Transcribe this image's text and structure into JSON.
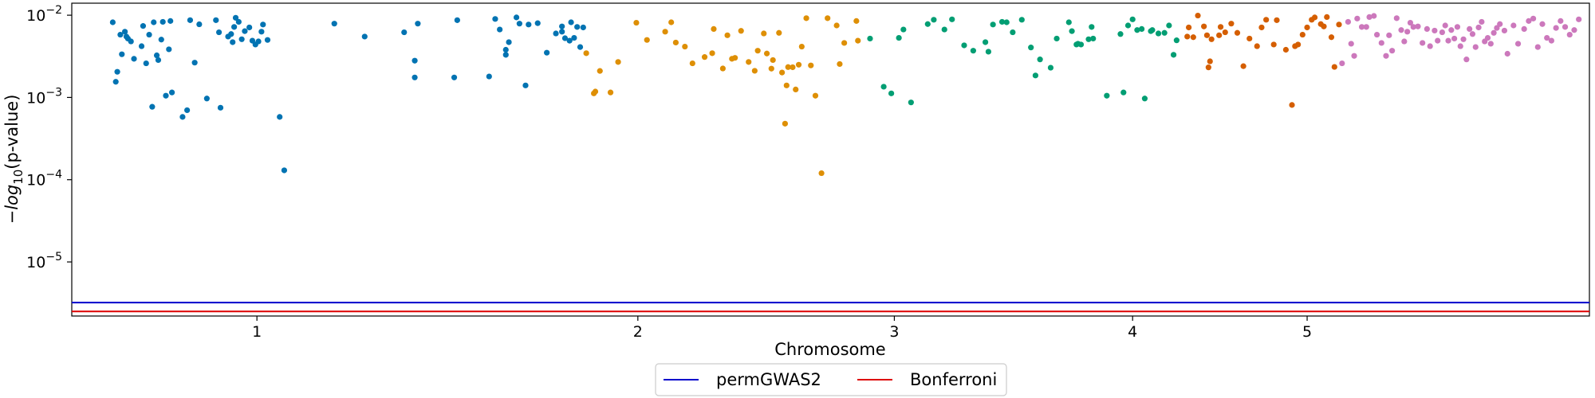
{
  "chart_data": {
    "type": "scatter",
    "title": "",
    "xlabel": "Chromosome",
    "ylabel_prefix": "−log",
    "ylabel_sub": "10",
    "ylabel_suffix": "(p-value)",
    "y_scale": "log-inverted",
    "ylim": [
      0.014,
      2.2e-06
    ],
    "y_ticks": [
      {
        "value": 0.01,
        "base": "10",
        "exp": "−2"
      },
      {
        "value": 0.001,
        "base": "10",
        "exp": "−3"
      },
      {
        "value": 0.0001,
        "base": "10",
        "exp": "−4"
      },
      {
        "value": 1e-05,
        "base": "10",
        "exp": "−5"
      }
    ],
    "xlim": [
      0,
      1000
    ],
    "x_ticks": [
      {
        "value": 122,
        "label": "1"
      },
      {
        "value": 373,
        "label": "2"
      },
      {
        "value": 542,
        "label": "3"
      },
      {
        "value": 699,
        "label": "4"
      },
      {
        "value": 814,
        "label": "5"
      }
    ],
    "thresholds": [
      {
        "name": "permGWAS2",
        "color": "#0000cc",
        "value": 3.2e-06
      },
      {
        "name": "Bonferroni",
        "color": "#dd0000",
        "value": 2.5e-06
      }
    ],
    "legend": {
      "placement": "bottom-center",
      "entries": [
        "permGWAS2",
        "Bonferroni"
      ]
    },
    "series": [
      {
        "color": "#0173b2",
        "points": [
          [
            27,
            0.0082
          ],
          [
            29,
            0.00155
          ],
          [
            30,
            0.00205
          ],
          [
            32,
            0.0058
          ],
          [
            33,
            0.00335
          ],
          [
            35,
            0.0063
          ],
          [
            36,
            0.0055
          ],
          [
            37,
            0.0052
          ],
          [
            39,
            0.0048
          ],
          [
            41,
            0.00295
          ],
          [
            46,
            0.0042
          ],
          [
            47,
            0.0074
          ],
          [
            49,
            0.0026
          ],
          [
            51,
            0.0058
          ],
          [
            53,
            0.00077
          ],
          [
            54,
            0.0082
          ],
          [
            56,
            0.00325
          ],
          [
            57,
            0.00285
          ],
          [
            59,
            0.00505
          ],
          [
            60,
            0.0083
          ],
          [
            62,
            0.00105
          ],
          [
            64,
            0.00385
          ],
          [
            65,
            0.0085
          ],
          [
            66,
            0.00115
          ],
          [
            73,
            0.00058
          ],
          [
            76,
            0.0007
          ],
          [
            78,
            0.0087
          ],
          [
            81,
            0.00265
          ],
          [
            84,
            0.00775
          ],
          [
            89,
            0.00097
          ],
          [
            95,
            0.0087
          ],
          [
            97,
            0.0062
          ],
          [
            98,
            0.00075
          ],
          [
            103,
            0.0055
          ],
          [
            105,
            0.0059
          ],
          [
            106,
            0.0047
          ],
          [
            107,
            0.0072
          ],
          [
            108,
            0.0093
          ],
          [
            110,
            0.0083
          ],
          [
            112,
            0.0051
          ],
          [
            114,
            0.0064
          ],
          [
            117,
            0.0071
          ],
          [
            119,
            0.0049
          ],
          [
            121,
            0.0044
          ],
          [
            123,
            0.0048
          ],
          [
            125,
            0.0063
          ],
          [
            126,
            0.0077
          ],
          [
            129,
            0.005
          ],
          [
            137,
            0.00058
          ],
          [
            140,
            0.00013
          ],
          [
            173,
            0.0079
          ],
          [
            193,
            0.0055
          ],
          [
            219,
            0.0062
          ],
          [
            226,
            0.00175
          ],
          [
            226,
            0.0028
          ],
          [
            228,
            0.0079
          ],
          [
            252,
            0.00175
          ],
          [
            254,
            0.0087
          ],
          [
            275,
            0.0018
          ],
          [
            279,
            0.009
          ],
          [
            282,
            0.0067
          ],
          [
            286,
            0.0033
          ],
          [
            286,
            0.0038
          ],
          [
            288,
            0.0047
          ],
          [
            293,
            0.0094
          ],
          [
            295,
            0.0079
          ],
          [
            299,
            0.0014
          ],
          [
            301,
            0.0077
          ],
          [
            307,
            0.008
          ],
          [
            313,
            0.0035
          ],
          [
            319,
            0.006
          ],
          [
            323,
            0.0063
          ],
          [
            323,
            0.0073
          ],
          [
            325,
            0.00525
          ],
          [
            328,
            0.0049
          ],
          [
            329,
            0.0082
          ],
          [
            331,
            0.0053
          ],
          [
            333,
            0.0072
          ],
          [
            335,
            0.0041
          ],
          [
            337,
            0.0071
          ]
        ]
      },
      {
        "color": "#de8f05",
        "points": [
          [
            339,
            0.00345
          ],
          [
            344,
            0.00112
          ],
          [
            345,
            0.00118
          ],
          [
            348,
            0.0021
          ],
          [
            355,
            0.00115
          ],
          [
            360,
            0.0027
          ],
          [
            372,
            0.0081
          ],
          [
            379,
            0.005
          ],
          [
            391,
            0.0063
          ],
          [
            395,
            0.0082
          ],
          [
            398,
            0.00465
          ],
          [
            404,
            0.00415
          ],
          [
            409,
            0.0026
          ],
          [
            417,
            0.0031
          ],
          [
            422,
            0.00345
          ],
          [
            423,
            0.0068
          ],
          [
            429,
            0.00225
          ],
          [
            432,
            0.0057
          ],
          [
            435,
            0.00295
          ],
          [
            437,
            0.00303
          ],
          [
            441,
            0.00645
          ],
          [
            446,
            0.0027
          ],
          [
            450,
            0.00211
          ],
          [
            452,
            0.0037
          ],
          [
            456,
            0.006
          ],
          [
            458,
            0.00342
          ],
          [
            461,
            0.00224
          ],
          [
            462,
            0.00285
          ],
          [
            466,
            0.0061
          ],
          [
            468,
            0.00201
          ],
          [
            470,
            0.00048
          ],
          [
            471,
            0.0014
          ],
          [
            472,
            0.00234
          ],
          [
            475,
            0.00233
          ],
          [
            477,
            0.00125
          ],
          [
            479,
            0.0025
          ],
          [
            481,
            0.00415
          ],
          [
            484,
            0.0092
          ],
          [
            487,
            0.00245
          ],
          [
            490,
            0.00105
          ],
          [
            494,
            0.00012
          ],
          [
            498,
            0.0092
          ],
          [
            504,
            0.0075
          ],
          [
            506,
            0.00255
          ],
          [
            509,
            0.0046
          ],
          [
            517,
            0.0085
          ],
          [
            518,
            0.0049
          ]
        ]
      },
      {
        "color": "#029e73",
        "points": [
          [
            526,
            0.0052
          ],
          [
            535,
            0.00135
          ],
          [
            540,
            0.00112
          ],
          [
            545,
            0.0053
          ],
          [
            548,
            0.0067
          ],
          [
            553,
            0.00087
          ],
          [
            564,
            0.0078
          ],
          [
            568,
            0.0088
          ],
          [
            575,
            0.0067
          ],
          [
            580,
            0.0089
          ],
          [
            588,
            0.0043
          ],
          [
            594,
            0.0037
          ],
          [
            602,
            0.0047
          ],
          [
            604,
            0.0036
          ],
          [
            607,
            0.0077
          ],
          [
            613,
            0.0083
          ],
          [
            616,
            0.0082
          ],
          [
            620,
            0.0062
          ],
          [
            626,
            0.0088
          ],
          [
            632,
            0.00405
          ],
          [
            635,
            0.00185
          ],
          [
            638,
            0.0029
          ],
          [
            645,
            0.0023
          ],
          [
            649,
            0.0052
          ],
          [
            657,
            0.0082
          ],
          [
            659,
            0.0064
          ],
          [
            662,
            0.0044
          ],
          [
            663,
            0.0045
          ],
          [
            665,
            0.0044
          ],
          [
            670,
            0.0051
          ],
          [
            672,
            0.0072
          ],
          [
            673,
            0.0052
          ],
          [
            682,
            0.00105
          ],
          [
            691,
            0.0059
          ],
          [
            693,
            0.00115
          ],
          [
            696,
            0.0075
          ],
          [
            699,
            0.0089
          ],
          [
            702,
            0.0066
          ],
          [
            705,
            0.0068
          ],
          [
            707,
            0.00097
          ],
          [
            711,
            0.0064
          ],
          [
            712,
            0.0066
          ],
          [
            716,
            0.006
          ],
          [
            720,
            0.0061
          ],
          [
            723,
            0.0075
          ],
          [
            726,
            0.0033
          ],
          [
            728,
            0.00495
          ]
        ]
      },
      {
        "color": "#d55e00",
        "points": [
          [
            735,
            0.0055
          ],
          [
            736,
            0.0071
          ],
          [
            739,
            0.0054
          ],
          [
            742,
            0.0099
          ],
          [
            746,
            0.0073
          ],
          [
            748,
            0.0057
          ],
          [
            749,
            0.00232
          ],
          [
            750,
            0.00275
          ],
          [
            751,
            0.0051
          ],
          [
            756,
            0.0057
          ],
          [
            757,
            0.0072
          ],
          [
            760,
            0.0062
          ],
          [
            764,
            0.0079
          ],
          [
            768,
            0.0061
          ],
          [
            772,
            0.0024
          ],
          [
            776,
            0.0052
          ],
          [
            781,
            0.0042
          ],
          [
            784,
            0.0071
          ],
          [
            787,
            0.0088
          ],
          [
            792,
            0.0044
          ],
          [
            794,
            0.0087
          ],
          [
            800,
            0.0038
          ],
          [
            804,
            0.00081
          ],
          [
            806,
            0.0042
          ],
          [
            808,
            0.0044
          ],
          [
            811,
            0.0058
          ],
          [
            814,
            0.0071
          ],
          [
            817,
            0.0088
          ],
          [
            819,
            0.0094
          ],
          [
            823,
            0.0078
          ],
          [
            825,
            0.0073
          ],
          [
            827,
            0.0095
          ],
          [
            830,
            0.0054
          ],
          [
            832,
            0.00235
          ],
          [
            835,
            0.0077
          ]
        ]
      },
      {
        "color": "#cc78bc",
        "points": [
          [
            837,
            0.0026
          ],
          [
            841,
            0.0083
          ],
          [
            843,
            0.0045
          ],
          [
            845,
            0.0032
          ],
          [
            847,
            0.0091
          ],
          [
            850,
            0.0072
          ],
          [
            853,
            0.0072
          ],
          [
            855,
            0.0095
          ],
          [
            858,
            0.0098
          ],
          [
            860,
            0.0058
          ],
          [
            863,
            0.0046
          ],
          [
            866,
            0.0032
          ],
          [
            868,
            0.0057
          ],
          [
            870,
            0.0037
          ],
          [
            873,
            0.0092
          ],
          [
            876,
            0.0066
          ],
          [
            878,
            0.0048
          ],
          [
            880,
            0.0063
          ],
          [
            882,
            0.0081
          ],
          [
            884,
            0.0072
          ],
          [
            887,
            0.0073
          ],
          [
            890,
            0.0046
          ],
          [
            893,
            0.0068
          ],
          [
            895,
            0.0042
          ],
          [
            898,
            0.0065
          ],
          [
            900,
            0.0049
          ],
          [
            903,
            0.0062
          ],
          [
            905,
            0.0075
          ],
          [
            907,
            0.0049
          ],
          [
            909,
            0.0066
          ],
          [
            911,
            0.0052
          ],
          [
            913,
            0.0072
          ],
          [
            915,
            0.0042
          ],
          [
            917,
            0.0051
          ],
          [
            919,
            0.0029
          ],
          [
            921,
            0.0068
          ],
          [
            923,
            0.0059
          ],
          [
            925,
            0.0041
          ],
          [
            927,
            0.0071
          ],
          [
            929,
            0.0083
          ],
          [
            931,
            0.0048
          ],
          [
            933,
            0.0053
          ],
          [
            935,
            0.0045
          ],
          [
            937,
            0.0061
          ],
          [
            939,
            0.007
          ],
          [
            941,
            0.0078
          ],
          [
            944,
            0.0065
          ],
          [
            946,
            0.0034
          ],
          [
            950,
            0.0075
          ],
          [
            953,
            0.0045
          ],
          [
            957,
            0.0068
          ],
          [
            960,
            0.0085
          ],
          [
            963,
            0.0091
          ],
          [
            966,
            0.0041
          ],
          [
            969,
            0.0078
          ],
          [
            972,
            0.0053
          ],
          [
            975,
            0.0049
          ],
          [
            978,
            0.007
          ],
          [
            981,
            0.0085
          ],
          [
            984,
            0.0072
          ],
          [
            987,
            0.0058
          ],
          [
            990,
            0.0066
          ],
          [
            993,
            0.0089
          ]
        ]
      }
    ]
  }
}
